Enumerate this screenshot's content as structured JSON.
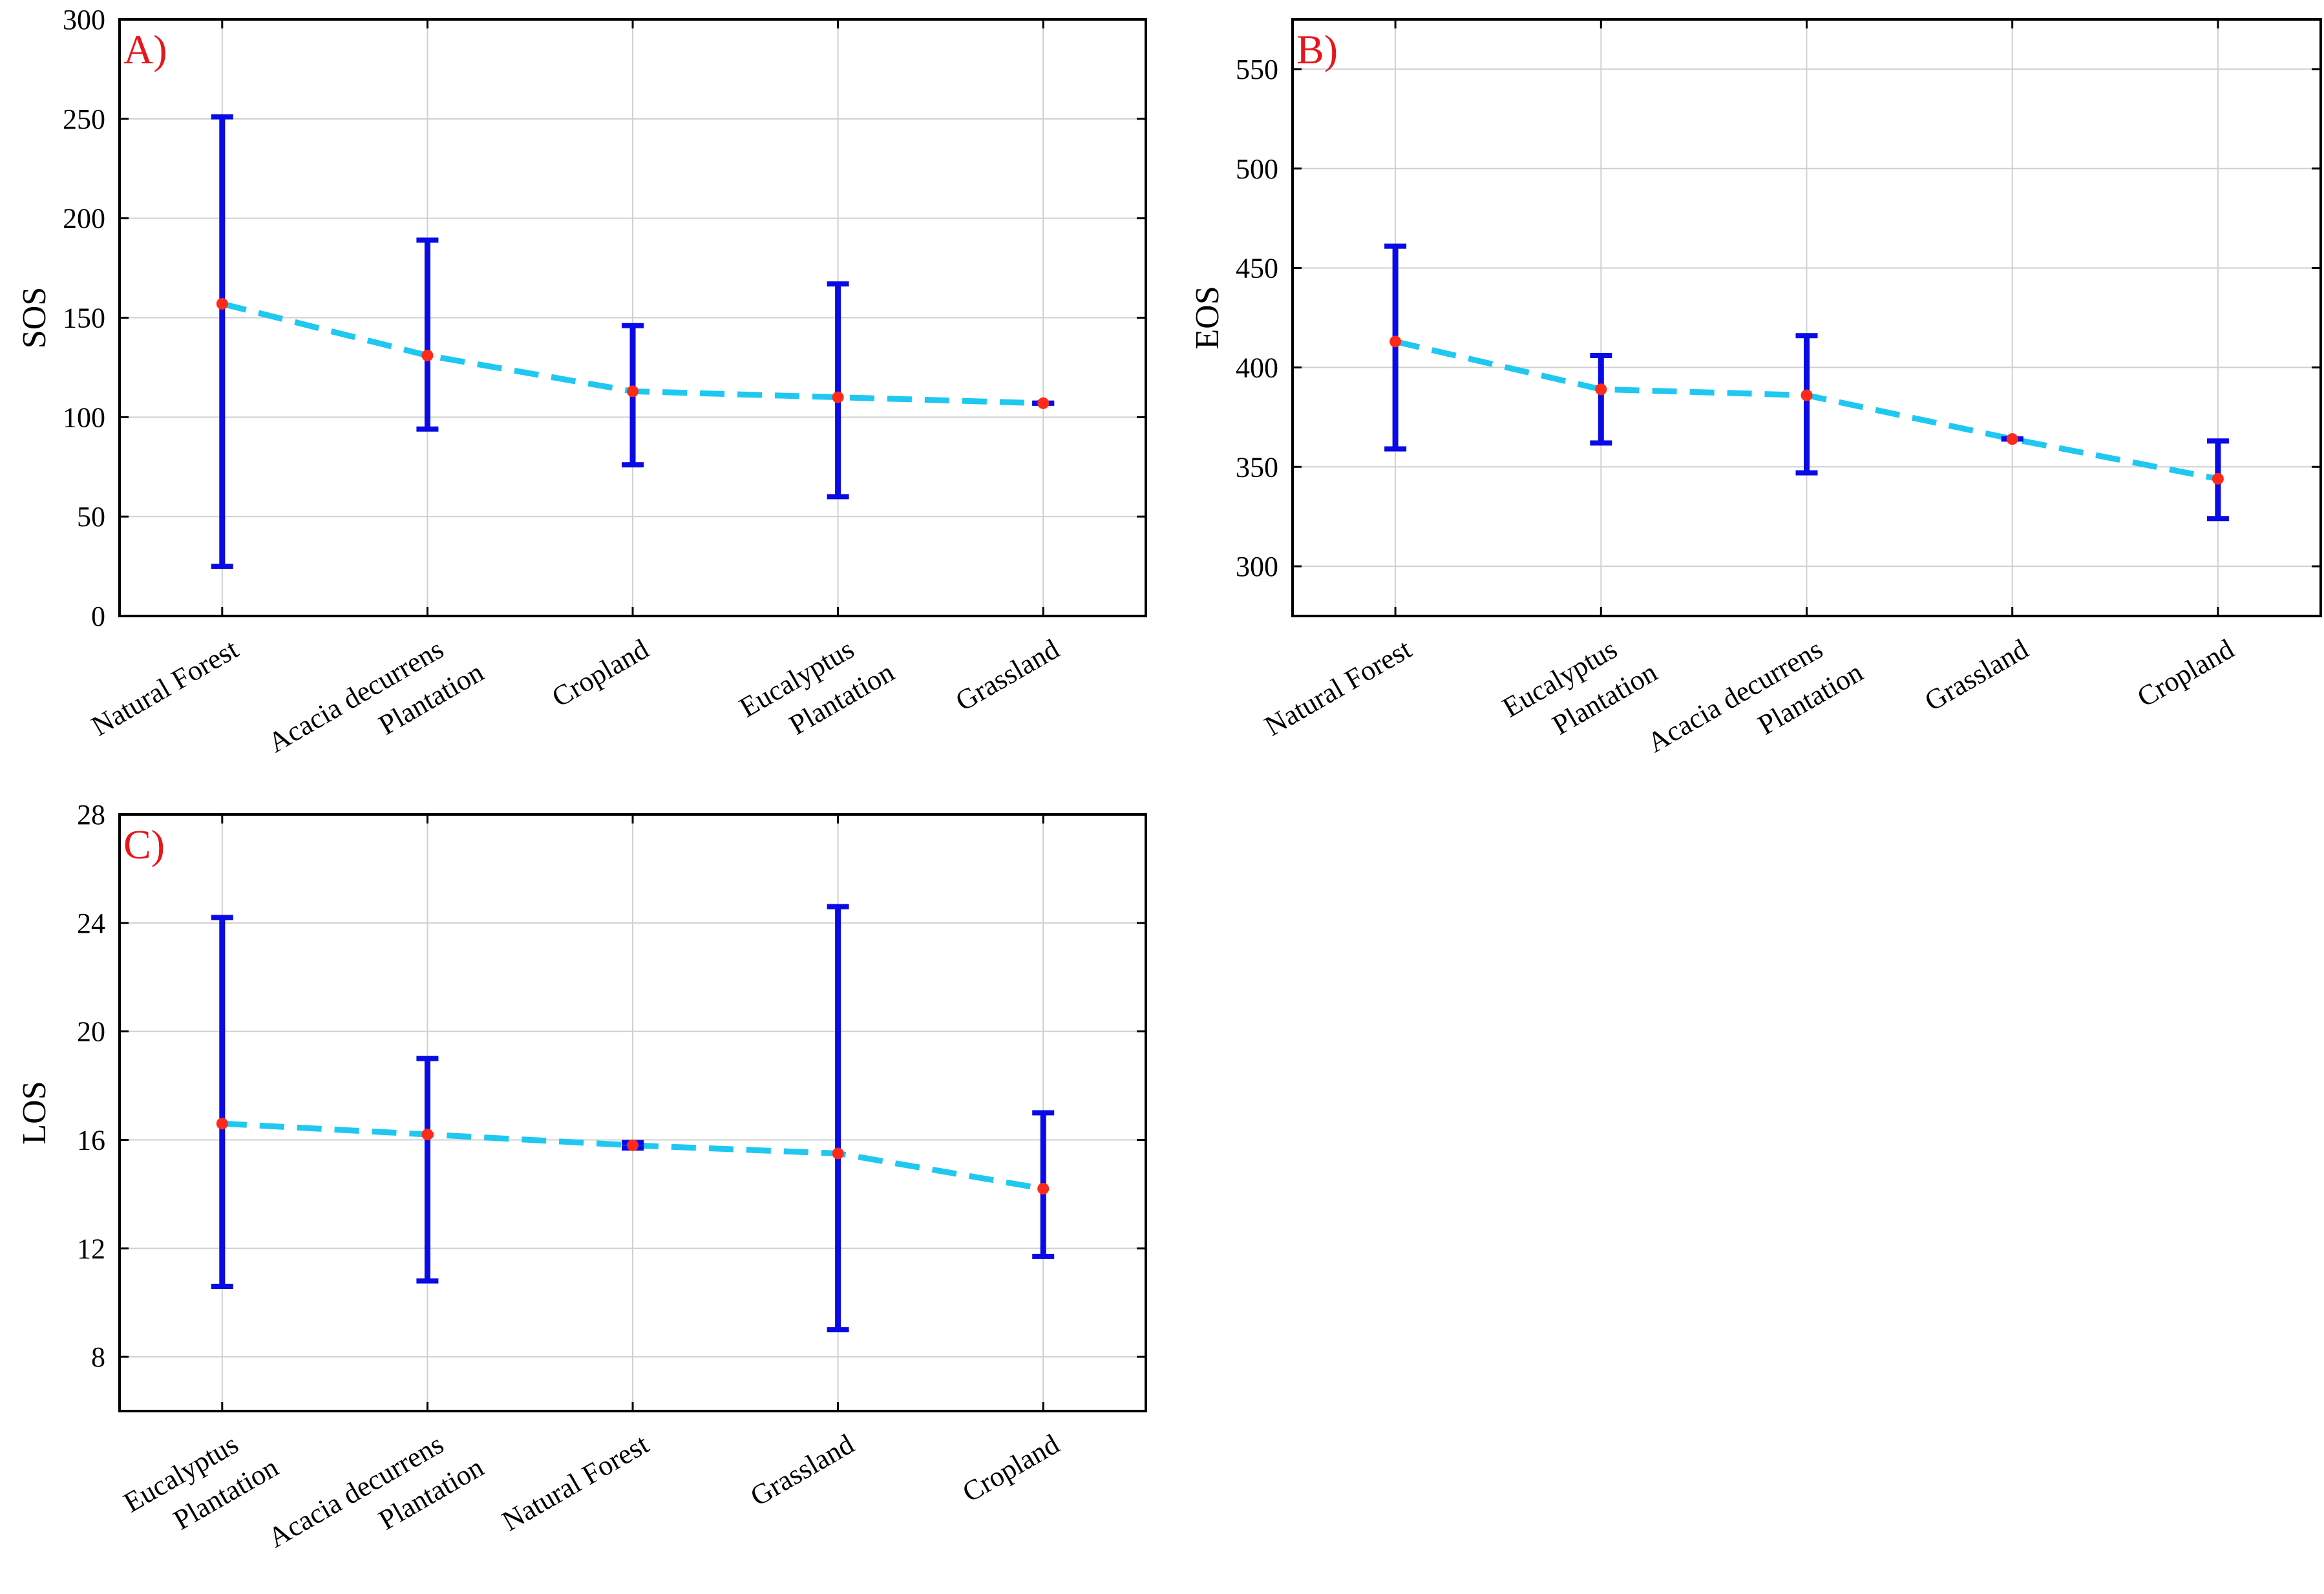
{
  "colors": {
    "errorbar": "#0a0ae6",
    "trend": "#1ec8f0",
    "point": "#ff2a1a",
    "panel_label": "#e8161b"
  },
  "chart_data": [
    {
      "type": "errorbar",
      "panel_label": "A)",
      "ylabel": "SOS",
      "ylim": [
        0,
        300
      ],
      "yticks": [
        0,
        50,
        100,
        150,
        200,
        250,
        300
      ],
      "categories": [
        [
          "Natural Forest"
        ],
        [
          "Acacia decurrens",
          "Plantation"
        ],
        [
          "Cropland"
        ],
        [
          "Eucalyptus",
          "Plantation"
        ],
        [
          "Grassland"
        ]
      ],
      "means": [
        157,
        131,
        113,
        110,
        107
      ],
      "lower": [
        25,
        94,
        76,
        60,
        107
      ],
      "upper": [
        251,
        189,
        146,
        167,
        107
      ]
    },
    {
      "type": "errorbar",
      "panel_label": "B)",
      "ylabel": "EOS",
      "ylim": [
        275,
        575
      ],
      "yticks": [
        300,
        350,
        400,
        450,
        500,
        550
      ],
      "categories": [
        [
          "Natural Forest"
        ],
        [
          "Eucalyptus",
          "Plantation"
        ],
        [
          "Acacia decurrens",
          "Plantation"
        ],
        [
          "Grassland"
        ],
        [
          "Cropland"
        ]
      ],
      "means": [
        413,
        389,
        386,
        364,
        344
      ],
      "lower": [
        359,
        362,
        347,
        364,
        324
      ],
      "upper": [
        461,
        406,
        416,
        364,
        363
      ]
    },
    {
      "type": "errorbar",
      "panel_label": "C)",
      "ylabel": "LOS",
      "ylim": [
        6,
        28
      ],
      "yticks": [
        8,
        12,
        16,
        20,
        24,
        28
      ],
      "categories": [
        [
          "Eucalyptus",
          "Plantation"
        ],
        [
          "Acacia decurrens",
          "Plantation"
        ],
        [
          "Natural Forest"
        ],
        [
          "Grassland"
        ],
        [
          "Cropland"
        ]
      ],
      "means": [
        16.6,
        16.2,
        15.8,
        15.5,
        14.2
      ],
      "lower": [
        10.6,
        10.8,
        15.7,
        9.0,
        11.7
      ],
      "upper": [
        24.2,
        19.0,
        15.9,
        24.6,
        17.0
      ]
    }
  ]
}
